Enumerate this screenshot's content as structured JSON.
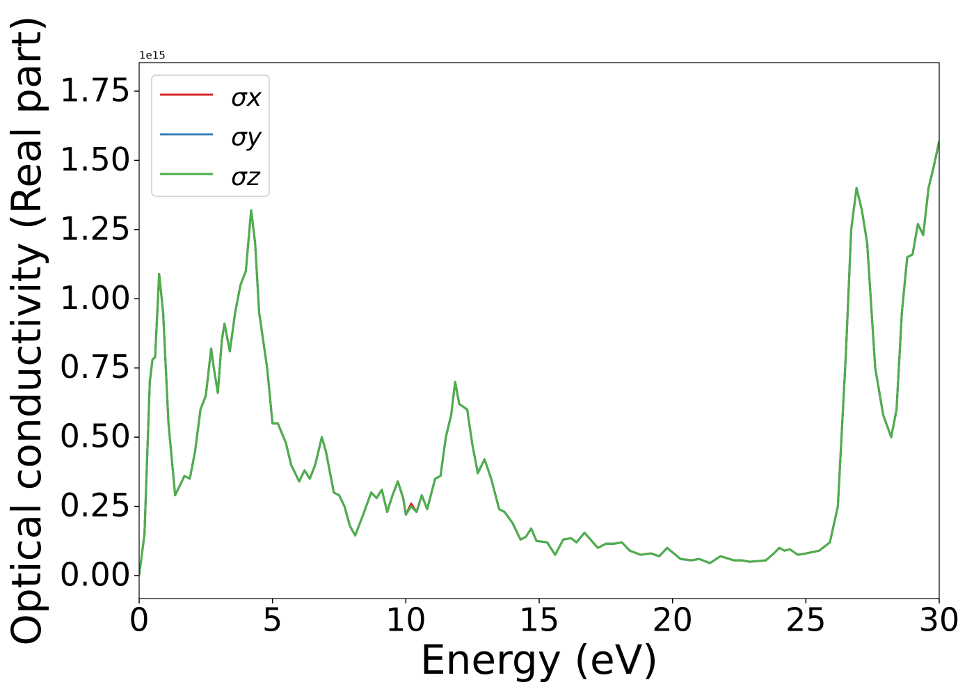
{
  "chart_data": {
    "type": "line",
    "xlabel": "Energy (eV)",
    "ylabel": "Optical conductivity (Real part)",
    "y_offset_label": "1e15",
    "xlim": [
      0,
      30
    ],
    "xticks": [
      0,
      5,
      10,
      15,
      20,
      25,
      30
    ],
    "ylim": [
      -0.083,
      1.853
    ],
    "yticks": [
      {
        "value": 0,
        "label": "0.00"
      },
      0.25,
      {
        "value": 0.5,
        "label": "0.50"
      },
      0.75,
      {
        "value": 1,
        "label": "1.00"
      },
      1.25,
      {
        "value": 1.5,
        "label": "1.50"
      },
      1.75
    ],
    "legend": "upper left",
    "x": [
      0,
      0.2,
      0.4,
      0.5,
      0.6,
      0.75,
      0.9,
      1.1,
      1.35,
      1.5,
      1.7,
      1.9,
      2.1,
      2.3,
      2.5,
      2.7,
      2.8,
      2.95,
      3.1,
      3.2,
      3.4,
      3.6,
      3.8,
      4.0,
      4.2,
      4.35,
      4.5,
      4.8,
      5.0,
      5.2,
      5.5,
      5.7,
      6.0,
      6.2,
      6.4,
      6.6,
      6.85,
      7.0,
      7.3,
      7.5,
      7.7,
      7.9,
      8.1,
      8.4,
      8.7,
      8.9,
      9.1,
      9.3,
      9.5,
      9.7,
      9.9,
      10.0,
      10.2,
      10.4,
      10.6,
      10.8,
      11.1,
      11.3,
      11.5,
      11.7,
      11.85,
      12.0,
      12.3,
      12.5,
      12.7,
      12.95,
      13.2,
      13.5,
      13.7,
      14.0,
      14.3,
      14.5,
      14.7,
      14.9,
      15.3,
      15.6,
      15.9,
      16.2,
      16.4,
      16.7,
      17.2,
      17.5,
      17.8,
      18.1,
      18.4,
      18.8,
      19.2,
      19.5,
      19.8,
      20.3,
      20.7,
      21.0,
      21.4,
      21.8,
      22.3,
      22.6,
      22.9,
      23.5,
      23.8,
      24.0,
      24.2,
      24.4,
      24.7,
      25.0,
      25.5,
      25.9,
      26.2,
      26.5,
      26.7,
      26.9,
      27.1,
      27.3,
      27.6,
      27.9,
      28.2,
      28.4,
      28.6,
      28.8,
      29.0,
      29.2,
      29.4,
      29.6,
      29.8,
      30.0
    ],
    "series": [
      {
        "name": "σx",
        "color": "#d62728",
        "values": [
          0,
          0.15,
          0.7,
          0.78,
          0.79,
          1.09,
          0.95,
          0.55,
          0.29,
          0.32,
          0.36,
          0.35,
          0.45,
          0.6,
          0.65,
          0.82,
          0.75,
          0.66,
          0.85,
          0.91,
          0.81,
          0.95,
          1.05,
          1.1,
          1.32,
          1.2,
          0.95,
          0.75,
          0.55,
          0.55,
          0.48,
          0.4,
          0.34,
          0.38,
          0.35,
          0.4,
          0.5,
          0.45,
          0.3,
          0.29,
          0.25,
          0.18,
          0.145,
          0.22,
          0.3,
          0.28,
          0.31,
          0.23,
          0.29,
          0.34,
          0.28,
          0.22,
          0.26,
          0.23,
          0.29,
          0.24,
          0.35,
          0.36,
          0.5,
          0.58,
          0.7,
          0.62,
          0.6,
          0.47,
          0.37,
          0.42,
          0.35,
          0.24,
          0.23,
          0.19,
          0.13,
          0.14,
          0.17,
          0.125,
          0.12,
          0.075,
          0.13,
          0.135,
          0.12,
          0.155,
          0.1,
          0.115,
          0.115,
          0.12,
          0.09,
          0.075,
          0.08,
          0.07,
          0.1,
          0.06,
          0.055,
          0.06,
          0.045,
          0.07,
          0.055,
          0.055,
          0.05,
          0.055,
          0.08,
          0.1,
          0.09,
          0.095,
          0.075,
          0.08,
          0.09,
          0.12,
          0.25,
          0.8,
          1.25,
          1.4,
          1.32,
          1.2,
          0.75,
          0.58,
          0.5,
          0.6,
          0.95,
          1.15,
          1.16,
          1.27,
          1.23,
          1.4,
          1.48,
          1.57
        ]
      },
      {
        "name": "σy",
        "color": "#3a7fb8",
        "values": [
          0,
          0.15,
          0.7,
          0.78,
          0.79,
          1.09,
          0.95,
          0.55,
          0.29,
          0.32,
          0.36,
          0.35,
          0.45,
          0.6,
          0.65,
          0.82,
          0.75,
          0.66,
          0.85,
          0.91,
          0.81,
          0.95,
          1.05,
          1.1,
          1.32,
          1.2,
          0.95,
          0.75,
          0.55,
          0.55,
          0.48,
          0.4,
          0.34,
          0.38,
          0.35,
          0.4,
          0.5,
          0.45,
          0.3,
          0.29,
          0.25,
          0.18,
          0.145,
          0.22,
          0.3,
          0.28,
          0.31,
          0.23,
          0.29,
          0.34,
          0.28,
          0.22,
          0.25,
          0.23,
          0.29,
          0.24,
          0.35,
          0.36,
          0.5,
          0.58,
          0.7,
          0.62,
          0.6,
          0.47,
          0.37,
          0.42,
          0.35,
          0.24,
          0.23,
          0.19,
          0.13,
          0.14,
          0.17,
          0.125,
          0.12,
          0.075,
          0.13,
          0.135,
          0.12,
          0.155,
          0.1,
          0.115,
          0.115,
          0.12,
          0.09,
          0.075,
          0.08,
          0.07,
          0.1,
          0.06,
          0.055,
          0.06,
          0.045,
          0.07,
          0.055,
          0.055,
          0.05,
          0.055,
          0.08,
          0.1,
          0.09,
          0.095,
          0.075,
          0.08,
          0.09,
          0.12,
          0.25,
          0.8,
          1.25,
          1.4,
          1.32,
          1.2,
          0.75,
          0.58,
          0.5,
          0.6,
          0.95,
          1.15,
          1.16,
          1.27,
          1.23,
          1.4,
          1.48,
          1.57
        ]
      },
      {
        "name": "σz",
        "color": "#4daf4a",
        "values": [
          0,
          0.15,
          0.7,
          0.78,
          0.79,
          1.09,
          0.95,
          0.55,
          0.29,
          0.32,
          0.36,
          0.35,
          0.45,
          0.6,
          0.65,
          0.82,
          0.75,
          0.66,
          0.85,
          0.91,
          0.81,
          0.95,
          1.05,
          1.1,
          1.32,
          1.2,
          0.95,
          0.75,
          0.55,
          0.55,
          0.48,
          0.4,
          0.34,
          0.38,
          0.35,
          0.4,
          0.5,
          0.45,
          0.3,
          0.29,
          0.25,
          0.18,
          0.145,
          0.22,
          0.3,
          0.28,
          0.31,
          0.23,
          0.29,
          0.34,
          0.28,
          0.22,
          0.25,
          0.23,
          0.29,
          0.24,
          0.35,
          0.36,
          0.5,
          0.58,
          0.7,
          0.62,
          0.6,
          0.47,
          0.37,
          0.42,
          0.35,
          0.24,
          0.23,
          0.19,
          0.13,
          0.14,
          0.17,
          0.125,
          0.12,
          0.075,
          0.13,
          0.135,
          0.12,
          0.155,
          0.1,
          0.115,
          0.115,
          0.12,
          0.09,
          0.075,
          0.08,
          0.07,
          0.1,
          0.06,
          0.055,
          0.06,
          0.045,
          0.07,
          0.055,
          0.055,
          0.05,
          0.055,
          0.08,
          0.1,
          0.09,
          0.095,
          0.075,
          0.08,
          0.09,
          0.12,
          0.25,
          0.8,
          1.25,
          1.4,
          1.32,
          1.2,
          0.75,
          0.58,
          0.5,
          0.6,
          0.95,
          1.15,
          1.16,
          1.27,
          1.23,
          1.4,
          1.48,
          1.57
        ]
      }
    ]
  }
}
